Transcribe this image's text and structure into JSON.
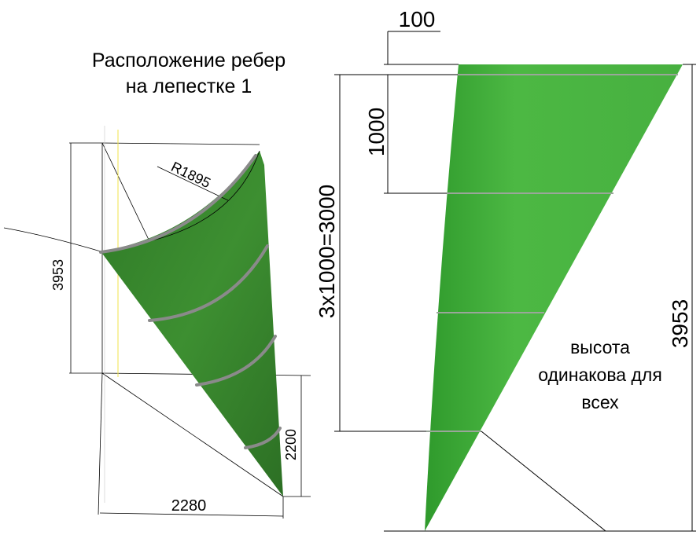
{
  "left_view": {
    "title_line1": "Расположение ребер",
    "title_line2": "на лепестке 1",
    "dim_height": "3953",
    "dim_radius": "R1895",
    "dim_small_height": "2200",
    "dim_width": "2280"
  },
  "right_view": {
    "dim_offset": "100",
    "dim_step": "1000",
    "dim_total_ribs": "3x1000=3000",
    "dim_height": "3953",
    "note_line1": "высота",
    "note_line2": "одинакова для",
    "note_line3": "всех"
  },
  "colors": {
    "petal_dark": "#3a8a2e",
    "petal_light": "#56c24a",
    "rib": "#8a8a8a"
  }
}
